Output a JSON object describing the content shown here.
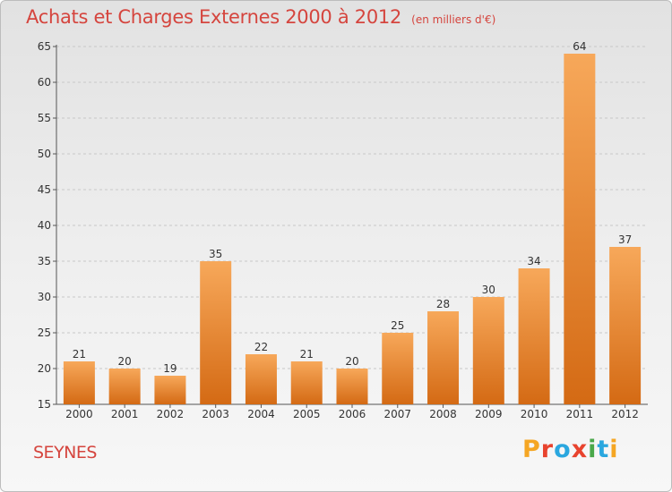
{
  "header": {
    "title": "Achats et Charges Externes 2000 à 2012",
    "unit": "(en milliers d'€)"
  },
  "footer": {
    "commune": "SEYNES",
    "logo_letters": [
      "P",
      "r",
      "o",
      "x",
      "i",
      "t",
      "i"
    ],
    "logo_colors": [
      "#f5a623",
      "#e8432e",
      "#2aa7df",
      "#e8432e",
      "#4aa84a",
      "#2aa7df",
      "#f5a623"
    ]
  },
  "colors": {
    "bar_top": "#f7a85a",
    "bar_bottom": "#d46a14",
    "grid": "#c8c8c8",
    "title": "#d5453e"
  },
  "chart_data": {
    "type": "bar",
    "title": "Achats et Charges Externes 2000 à 2012",
    "xlabel": "",
    "ylabel": "",
    "categories": [
      "2000",
      "2001",
      "2002",
      "2003",
      "2004",
      "2005",
      "2006",
      "2007",
      "2008",
      "2009",
      "2010",
      "2011",
      "2012"
    ],
    "values": [
      21,
      20,
      19,
      35,
      22,
      21,
      20,
      25,
      28,
      30,
      34,
      64,
      37
    ],
    "ylim": [
      15,
      65
    ],
    "yticks": [
      15,
      20,
      25,
      30,
      35,
      40,
      45,
      50,
      55,
      60,
      65
    ],
    "grid": "horizontal dashed"
  }
}
